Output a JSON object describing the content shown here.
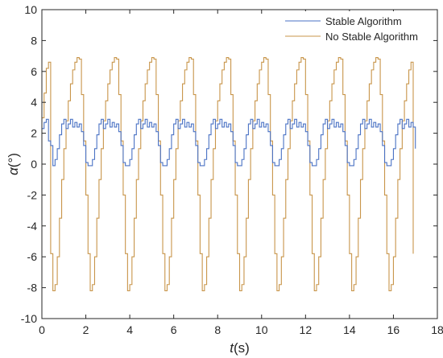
{
  "chart_data": {
    "type": "line",
    "xlabel": {
      "symbol": "t",
      "unit": "(s)"
    },
    "ylabel": {
      "symbol": "α",
      "unit": "(°)"
    },
    "xlim": [
      0,
      18
    ],
    "ylim": [
      -10,
      10
    ],
    "xticks": [
      "0",
      "2",
      "4",
      "6",
      "8",
      "10",
      "12",
      "14",
      "16",
      "18"
    ],
    "yticks": [
      "-10",
      "-8",
      "-6",
      "-4",
      "-2",
      "0",
      "2",
      "4",
      "6",
      "8",
      "10"
    ],
    "grid": false,
    "legend_position": "top-right",
    "series": [
      {
        "name": "Stable Algorithm",
        "color": "#4a72c4",
        "style": "step",
        "period": 1.7,
        "t_start": 0,
        "t_end": 17,
        "dt": 0.1,
        "cycle_shape": [
          2.6,
          2.1,
          1.2,
          0.1,
          -0.1,
          -0.1,
          0.3,
          1.0,
          1.9,
          2.6,
          2.9,
          2.3,
          2.6,
          2.9,
          2.4,
          2.7,
          2.4
        ],
        "start_values": [
          2.3,
          2.7,
          2.9,
          1.5,
          1.2
        ],
        "end_value": 1.0
      },
      {
        "name": "No Stable Algorithm",
        "color": "#c8954a",
        "style": "step",
        "period": 1.7,
        "t_start": 0,
        "t_end": 16.9,
        "dt": 0.1,
        "cycle_shape": [
          6.8,
          4.5,
          1.5,
          -2.0,
          -5.8,
          -8.2,
          -7.8,
          -6.0,
          -3.5,
          -1.0,
          1.0,
          2.8,
          4.1,
          5.2,
          6.1,
          6.6,
          6.9
        ],
        "start_values": [
          3.0,
          4.6,
          6.2,
          6.6
        ],
        "end_value": -5.8
      }
    ]
  }
}
